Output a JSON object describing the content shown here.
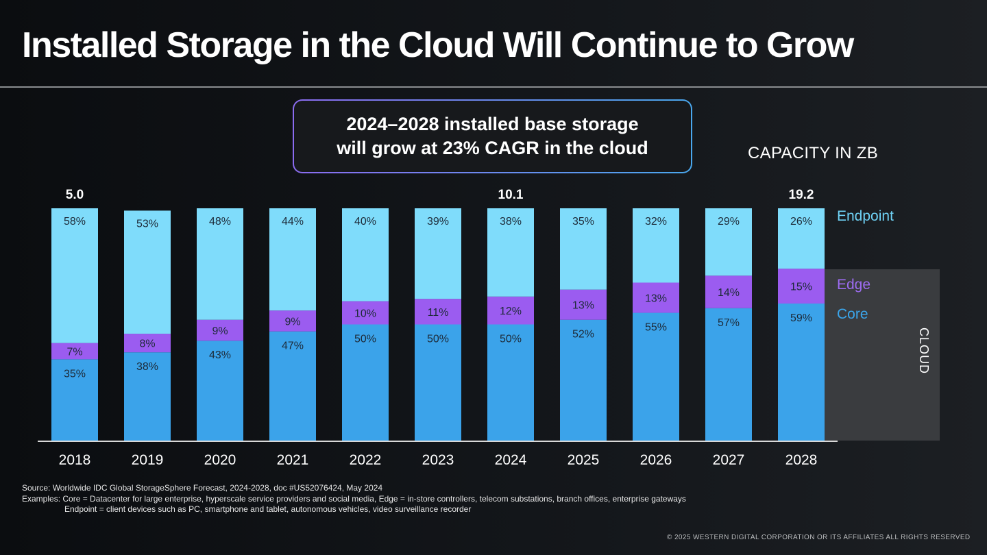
{
  "title": "Installed Storage in the Cloud Will Continue to Grow",
  "callout": {
    "line1": "2024–2028 installed base storage",
    "line2": "will grow at 23% CAGR in the cloud"
  },
  "capacity_label": "CAPACITY IN ZB",
  "cloud_label": "CLOUD",
  "colors": {
    "endpoint": "#7fdcfb",
    "edge": "#9b5cf0",
    "core": "#3ba3ea",
    "endpoint_legend": "#6fd2f5",
    "edge_legend": "#9d6cf2",
    "core_legend": "#3aa6ec"
  },
  "chart_data": {
    "type": "bar",
    "stacked": true,
    "title": "Installed Storage in the Cloud Will Continue to Grow",
    "ylabel": "CAPACITY IN ZB",
    "xlabel": "",
    "categories": [
      "2018",
      "2019",
      "2020",
      "2021",
      "2022",
      "2023",
      "2024",
      "2025",
      "2026",
      "2027",
      "2028"
    ],
    "series": [
      {
        "name": "Core",
        "values": [
          35,
          38,
          43,
          47,
          50,
          50,
          50,
          52,
          55,
          57,
          59
        ]
      },
      {
        "name": "Edge",
        "values": [
          7,
          8,
          9,
          9,
          10,
          11,
          12,
          13,
          13,
          14,
          15
        ]
      },
      {
        "name": "Endpoint",
        "values": [
          58,
          53,
          48,
          44,
          40,
          39,
          38,
          35,
          32,
          29,
          26
        ]
      }
    ],
    "value_format": "percent",
    "totals": [
      {
        "category": "2018",
        "label": "5.0"
      },
      {
        "category": "2024",
        "label": "10.1"
      },
      {
        "category": "2028",
        "label": "19.2"
      }
    ],
    "legend": [
      "Endpoint",
      "Edge",
      "Core"
    ],
    "legend_position": "right",
    "grouping_label": {
      "label": "CLOUD",
      "covers": [
        "Edge",
        "Core"
      ]
    },
    "grid": false,
    "ylim": [
      0,
      100
    ]
  },
  "footnotes": {
    "source": "Source: Worldwide IDC Global StorageSphere Forecast, 2024-2028, doc #US52076424, May 2024",
    "examples1": "Examples: Core = Datacenter for large enterprise, hyperscale service providers and social media, Edge = in-store controllers, telecom substations, branch offices, enterprise gateways",
    "examples2": "Endpoint = client devices such as PC, smartphone and tablet, autonomous vehicles, video surveillance recorder"
  },
  "copyright": "© 2025 WESTERN DIGITAL CORPORATION OR ITS AFFILIATES  ALL RIGHTS RESERVED"
}
